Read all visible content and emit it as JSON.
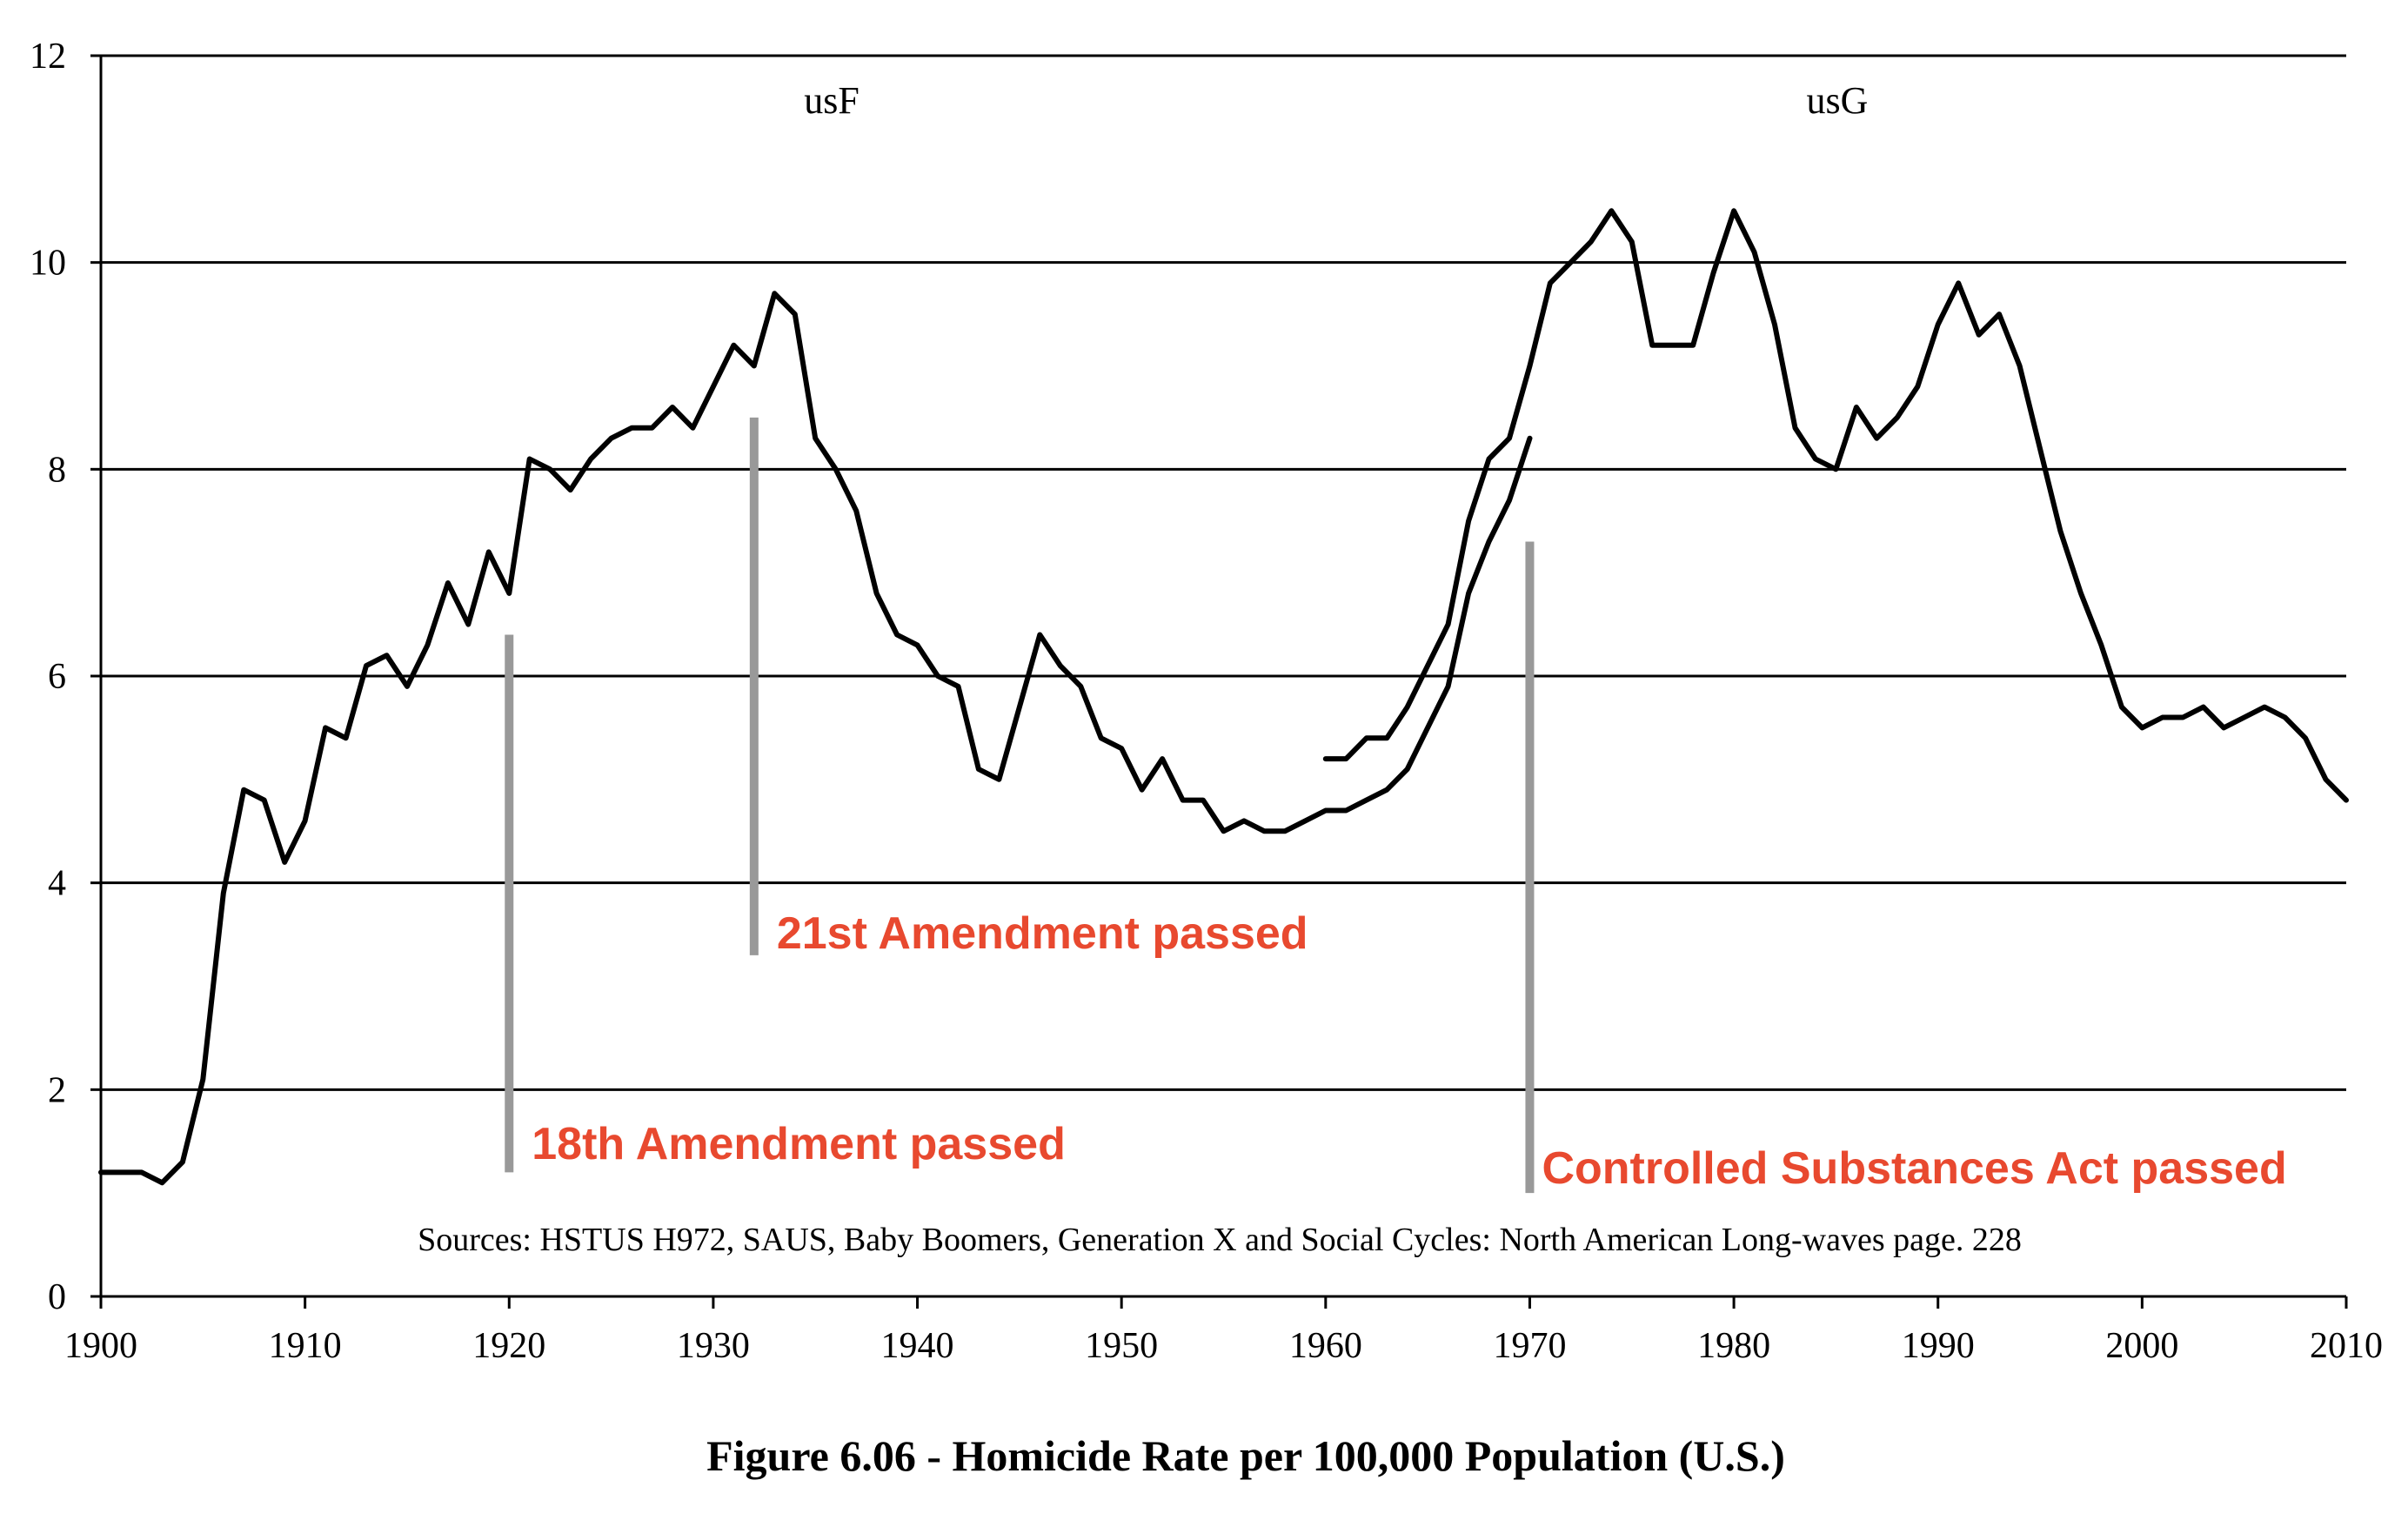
{
  "chart_data": {
    "type": "line",
    "caption": "Figure 6.06 - Homicide Rate per 100,000 Population (U.S.)",
    "source_note": "Sources: HSTUS H972, SAUS, Baby Boomers, Generation X and Social Cycles: North American Long-waves page. 228",
    "xlim": [
      1900,
      2010
    ],
    "ylim": [
      0,
      12
    ],
    "x_ticks": [
      "1900",
      "1910",
      "1920",
      "1930",
      "1940",
      "1950",
      "1960",
      "1970",
      "1980",
      "1990",
      "2000",
      "2010"
    ],
    "y_ticks": [
      "0",
      "2",
      "4",
      "6",
      "8",
      "10",
      "12"
    ],
    "grid": "horizontal",
    "series": [
      {
        "name": "usF",
        "x": [
          1900,
          1901,
          1902,
          1903,
          1904,
          1905,
          1906,
          1907,
          1908,
          1909,
          1910,
          1911,
          1912,
          1913,
          1914,
          1915,
          1916,
          1917,
          1918,
          1919,
          1920,
          1921,
          1922,
          1923,
          1924,
          1925,
          1926,
          1927,
          1928,
          1929,
          1930,
          1931,
          1932,
          1933,
          1934,
          1935,
          1936,
          1937,
          1938,
          1939,
          1940,
          1941,
          1942,
          1943,
          1944,
          1945,
          1946,
          1947,
          1948,
          1949,
          1950,
          1951,
          1952,
          1953,
          1954,
          1955,
          1956,
          1957,
          1958,
          1959,
          1960,
          1961,
          1962,
          1963,
          1964,
          1965,
          1966,
          1967,
          1968,
          1969,
          1970
        ],
        "values": [
          1.2,
          1.2,
          1.2,
          1.1,
          1.3,
          2.1,
          3.9,
          4.9,
          4.8,
          4.2,
          4.6,
          5.5,
          5.4,
          6.1,
          6.2,
          5.9,
          6.3,
          6.9,
          6.5,
          7.2,
          6.8,
          8.1,
          8.0,
          7.8,
          8.1,
          8.3,
          8.4,
          8.4,
          8.6,
          8.4,
          8.8,
          9.2,
          9.0,
          9.7,
          9.5,
          8.3,
          8.0,
          7.6,
          6.8,
          6.4,
          6.3,
          6.0,
          5.9,
          5.1,
          5.0,
          5.7,
          6.4,
          6.1,
          5.9,
          5.4,
          5.3,
          4.9,
          5.2,
          4.8,
          4.8,
          4.5,
          4.6,
          4.5,
          4.5,
          4.6,
          4.7,
          4.7,
          4.8,
          4.9,
          5.1,
          5.5,
          5.9,
          6.8,
          7.3,
          7.7,
          8.3
        ]
      },
      {
        "name": "usG",
        "x": [
          1960,
          1961,
          1962,
          1963,
          1964,
          1965,
          1966,
          1967,
          1968,
          1969,
          1970,
          1971,
          1972,
          1973,
          1974,
          1975,
          1976,
          1977,
          1978,
          1979,
          1980,
          1981,
          1982,
          1983,
          1984,
          1985,
          1986,
          1987,
          1988,
          1989,
          1990,
          1991,
          1992,
          1993,
          1994,
          1995,
          1996,
          1997,
          1998,
          1999,
          2000,
          2001,
          2002,
          2003,
          2004,
          2005,
          2006,
          2007,
          2008,
          2009,
          2010
        ],
        "values": [
          5.2,
          5.2,
          5.4,
          5.4,
          5.7,
          6.1,
          6.5,
          7.5,
          8.1,
          8.3,
          9.0,
          9.8,
          10.0,
          10.2,
          10.5,
          10.2,
          9.2,
          9.2,
          9.2,
          9.9,
          10.5,
          10.1,
          9.4,
          8.4,
          8.1,
          8.0,
          8.6,
          8.3,
          8.5,
          8.8,
          9.4,
          9.8,
          9.3,
          9.5,
          9.0,
          8.2,
          7.4,
          6.8,
          6.3,
          5.7,
          5.5,
          5.6,
          5.6,
          5.7,
          5.5,
          5.6,
          5.7,
          5.6,
          5.4,
          5.0,
          4.8
        ]
      }
    ],
    "markers": [
      {
        "label": "18th Amendment passed",
        "year": 1920,
        "y_top": 6.4,
        "y_bottom": 1.2
      },
      {
        "label": "21st Amendment passed",
        "year": 1932,
        "y_top": 8.5,
        "y_bottom": 3.3
      },
      {
        "label": "Controlled Substances Act passed",
        "year": 1970,
        "y_top": 7.3,
        "y_bottom": 1.0
      }
    ],
    "colors": {
      "line": "#000000",
      "marker": "#999999",
      "annotation": "#e8492f",
      "grid": "#000000"
    }
  }
}
